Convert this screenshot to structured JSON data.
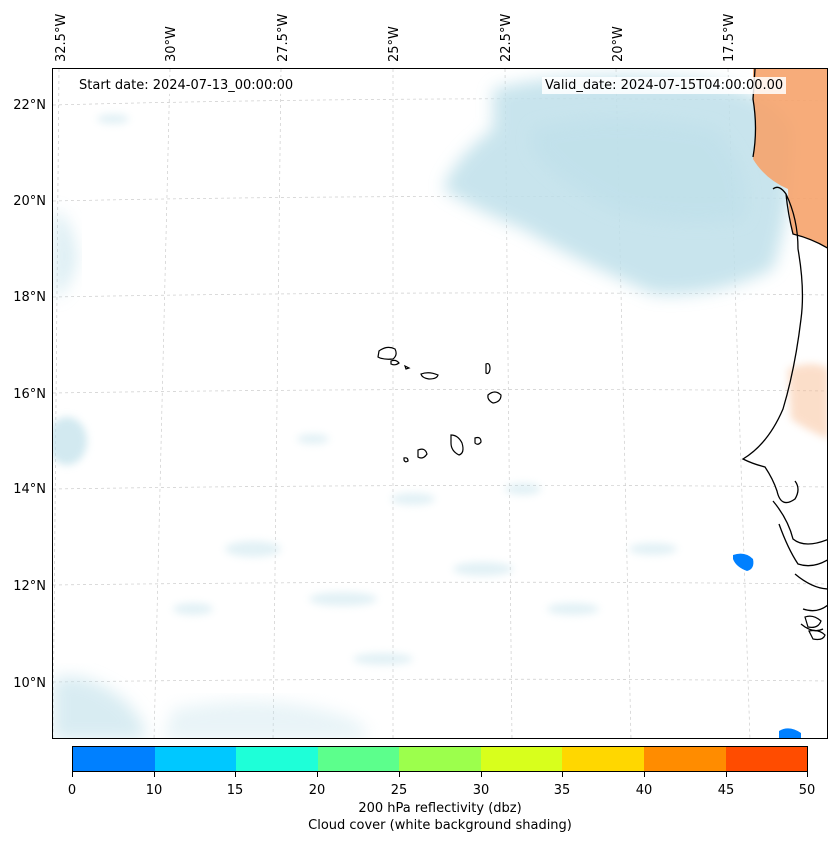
{
  "map": {
    "start_date": "Start date: 2024-07-13_00:00:00",
    "valid_date": "Valid_date: 2024-07-15T04:00:00.00",
    "lat_labels": [
      "22°N",
      "20°N",
      "18°N",
      "16°N",
      "14°N",
      "12°N",
      "10°N"
    ],
    "lon_labels": [
      "32.5°W",
      "30°W",
      "27.5°W",
      "25°W",
      "22.5°W",
      "20°W",
      "17.5°W"
    ],
    "region": "Cape Verde / West Africa coast",
    "colors": {
      "cloud": "#bfe0ea",
      "land_shade": "#f6a36b",
      "reflectivity_low": "#0080ff"
    }
  },
  "colorbar": {
    "ticks": [
      "0",
      "10",
      "15",
      "20",
      "25",
      "30",
      "35",
      "40",
      "45",
      "50"
    ],
    "colors": [
      "#0080ff",
      "#00c8ff",
      "#1effd8",
      "#5cff8c",
      "#9cff4c",
      "#d8ff1c",
      "#ffd700",
      "#ff8c00",
      "#ff4c00"
    ],
    "label_line1": "200 hPa reflectivity (dbz)",
    "label_line2": "Cloud cover (white background shading)"
  }
}
